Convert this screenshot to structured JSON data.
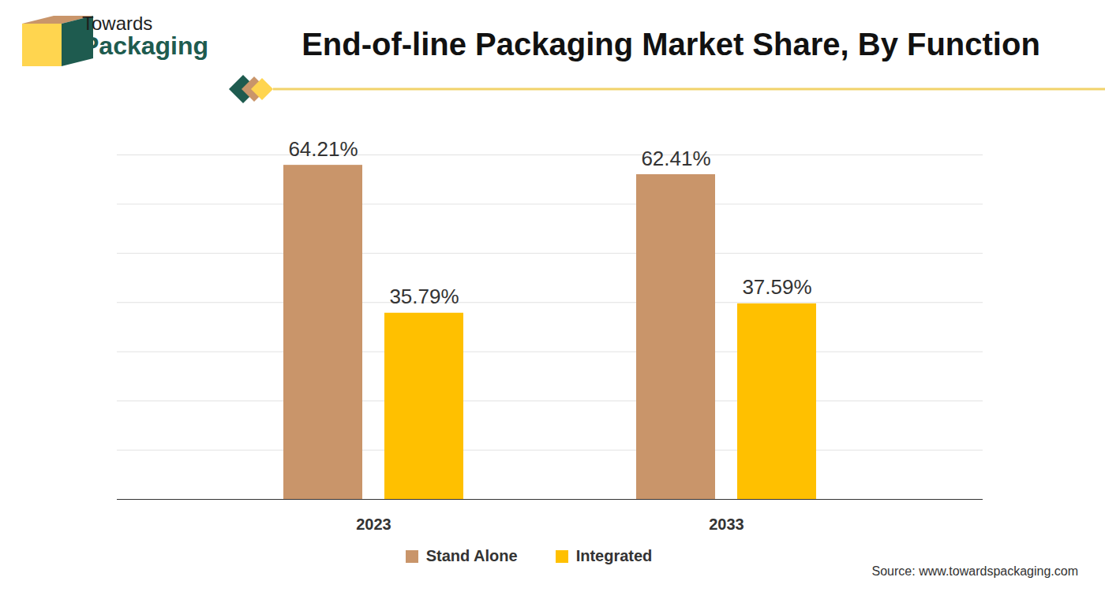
{
  "chart_data": {
    "type": "bar",
    "title": "End-of-line Packaging Market Share, By Function",
    "brand": [
      "Towards",
      "Packaging"
    ],
    "source": "Source: www.towardspackaging.com",
    "categories": [
      "2023",
      "2033"
    ],
    "series": [
      {
        "name": "Stand Alone",
        "color": "#C9956A",
        "values": [
          64.21,
          62.41
        ],
        "value_labels": [
          "64.21%",
          "62.41%"
        ]
      },
      {
        "name": "Integrated",
        "color": "#FFC000",
        "values": [
          35.79,
          37.59
        ],
        "value_labels": [
          "35.79%",
          "37.59%"
        ]
      }
    ],
    "ylim": [
      0,
      66.2
    ],
    "yticks": [
      0,
      9.46,
      18.91,
      28.37,
      37.83,
      47.29,
      56.74,
      66.2
    ],
    "grid": true,
    "data_labels": true,
    "tick_labels": "x",
    "legend": "bottom"
  }
}
